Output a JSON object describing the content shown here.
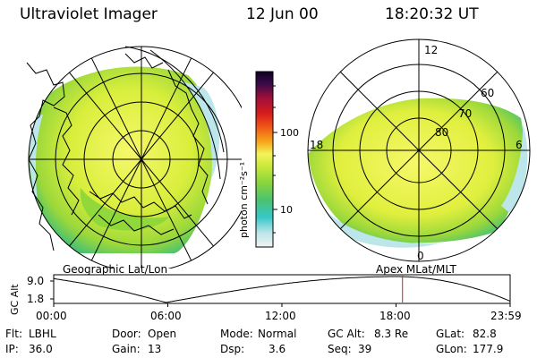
{
  "header": {
    "instrument": "Ultraviolet Imager",
    "date": "12 Jun 00",
    "time": "18:20:32 UT"
  },
  "geo_panel": {
    "label": "Geographic Lat/Lon"
  },
  "apex_panel": {
    "label": "Apex MLat/MLT",
    "mlt_labels": {
      "top": "12",
      "left": "18",
      "right": "6",
      "bottom": "0"
    },
    "mlat_labels": [
      "60",
      "70",
      "80"
    ]
  },
  "colorbar": {
    "unit_label": "photon cm⁻²s⁻¹",
    "tick_labels": [
      "100",
      "10"
    ],
    "scale": "log",
    "colors": [
      "#f2f2f2",
      "#bde6ea",
      "#37c7c8",
      "#4cc26f",
      "#8bd63a",
      "#c9e93a",
      "#f3f45a",
      "#f7a61a",
      "#f05b18",
      "#d81c1c",
      "#a00f3a",
      "#3a0a4a",
      "#100020"
    ]
  },
  "altitude_plot": {
    "ylabel": "GC Alt",
    "yticks": [
      "9.0",
      "1.8"
    ],
    "xticks": [
      "00:00",
      "06:00",
      "12:00",
      "18:00",
      "23:59"
    ],
    "marker_time_hours": 18.34,
    "line_color": "#000000",
    "marker_color": "#d22020"
  },
  "info": {
    "flt_label": "Flt:",
    "flt_value": "LBHL",
    "ip_label": "IP:",
    "ip_value": "36.0",
    "door_label": "Door:",
    "door_value": "Open",
    "gain_label": "Gain:",
    "gain_value": "13",
    "mode_label": "Mode:",
    "mode_value": "Normal",
    "dsp_label": "Dsp:",
    "dsp_value": "3.6",
    "gcalt_label": "GC Alt:",
    "gcalt_value": "8.3 Re",
    "seq_label": "Seq:",
    "seq_value": "39",
    "glat_label": "GLat:",
    "glat_value": "82.8",
    "glon_label": "GLon:",
    "glon_value": "177.9"
  }
}
